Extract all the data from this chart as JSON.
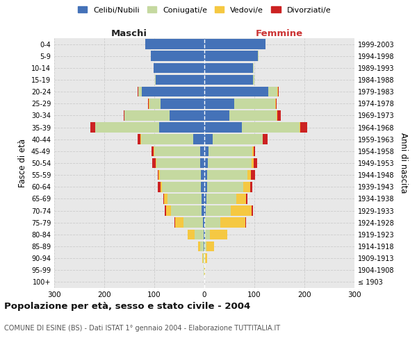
{
  "age_groups": [
    "100+",
    "95-99",
    "90-94",
    "85-89",
    "80-84",
    "75-79",
    "70-74",
    "65-69",
    "60-64",
    "55-59",
    "50-54",
    "45-49",
    "40-44",
    "35-39",
    "30-34",
    "25-29",
    "20-24",
    "15-19",
    "10-14",
    "5-9",
    "0-4"
  ],
  "birth_years": [
    "≤ 1903",
    "1904-1908",
    "1909-1913",
    "1914-1918",
    "1919-1923",
    "1924-1928",
    "1929-1933",
    "1934-1938",
    "1939-1943",
    "1944-1948",
    "1949-1953",
    "1954-1958",
    "1959-1963",
    "1964-1968",
    "1969-1973",
    "1974-1978",
    "1979-1983",
    "1984-1988",
    "1989-1993",
    "1994-1998",
    "1999-2003"
  ],
  "males_celibe": [
    0,
    0,
    0,
    1,
    2,
    3,
    5,
    5,
    7,
    7,
    9,
    9,
    22,
    90,
    70,
    88,
    125,
    97,
    102,
    107,
    118
  ],
  "males_coniugato": [
    0,
    1,
    3,
    7,
    18,
    38,
    62,
    68,
    78,
    82,
    87,
    91,
    105,
    128,
    90,
    22,
    7,
    2,
    0,
    0,
    0
  ],
  "males_vedovo": [
    0,
    0,
    1,
    4,
    13,
    18,
    10,
    7,
    3,
    2,
    1,
    1,
    1,
    0,
    0,
    1,
    0,
    0,
    0,
    0,
    0
  ],
  "males_divorziato": [
    0,
    0,
    0,
    0,
    0,
    1,
    2,
    2,
    5,
    2,
    7,
    4,
    5,
    10,
    1,
    1,
    1,
    0,
    0,
    0,
    0
  ],
  "females_nubile": [
    0,
    0,
    0,
    0,
    1,
    2,
    3,
    4,
    6,
    6,
    7,
    9,
    16,
    75,
    50,
    60,
    128,
    97,
    97,
    107,
    122
  ],
  "females_coniugata": [
    0,
    0,
    2,
    4,
    10,
    30,
    50,
    60,
    72,
    80,
    87,
    87,
    100,
    115,
    95,
    82,
    18,
    3,
    2,
    1,
    0
  ],
  "females_vedova": [
    0,
    1,
    4,
    15,
    35,
    50,
    42,
    20,
    13,
    7,
    4,
    2,
    1,
    1,
    1,
    1,
    1,
    0,
    0,
    0,
    0
  ],
  "females_divorziata": [
    0,
    0,
    0,
    0,
    0,
    1,
    2,
    2,
    5,
    8,
    7,
    4,
    9,
    14,
    7,
    1,
    1,
    0,
    0,
    0,
    0
  ],
  "colors": {
    "celibe": "#4472b8",
    "coniugato": "#c5d9a0",
    "vedovo": "#f5c842",
    "divorziato": "#cc2222"
  },
  "title": "Popolazione per età, sesso e stato civile - 2004",
  "subtitle": "COMUNE DI ESINE (BS) - Dati ISTAT 1° gennaio 2004 - Elaborazione TUTTITALIA.IT",
  "label_maschi": "Maschi",
  "label_femmine": "Femmine",
  "ylabel_left": "Fasce di età",
  "ylabel_right": "Anni di nascita",
  "legend_labels": [
    "Celibi/Nubili",
    "Coniugati/e",
    "Vedovi/e",
    "Divorziati/e"
  ],
  "xlim": 300,
  "background_color": "#ffffff",
  "plot_bg": "#e8e8e8",
  "grid_color": "#cccccc"
}
